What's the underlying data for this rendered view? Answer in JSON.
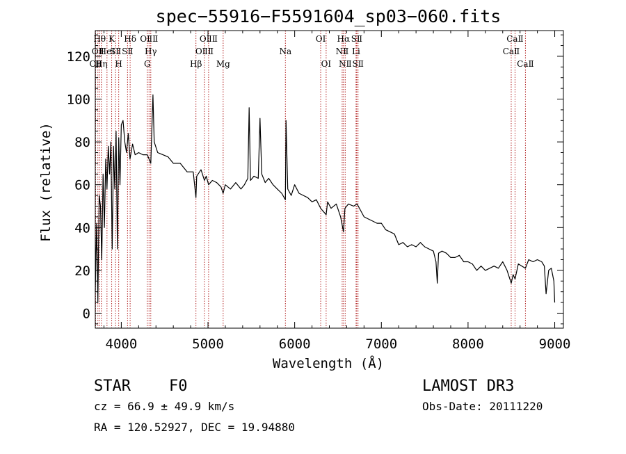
{
  "chart_data": {
    "type": "line",
    "title": "spec−55916−F5591604_sp03−060.fits",
    "xlabel": "Wavelength (Å)",
    "ylabel": "Flux (relative)",
    "xlim": [
      3700,
      9100
    ],
    "ylim": [
      -7,
      132
    ],
    "xticks": [
      4000,
      5000,
      6000,
      7000,
      8000,
      9000
    ],
    "yticks": [
      0,
      20,
      40,
      60,
      80,
      100,
      120
    ],
    "line_color": "#000000",
    "marker_color": "#b22222",
    "series": [
      {
        "name": "flux",
        "x": [
          3700,
          3715,
          3730,
          3745,
          3760,
          3775,
          3790,
          3805,
          3820,
          3835,
          3850,
          3865,
          3880,
          3895,
          3910,
          3925,
          3940,
          3955,
          3970,
          3985,
          4000,
          4020,
          4040,
          4060,
          4080,
          4100,
          4130,
          4160,
          4200,
          4250,
          4300,
          4340,
          4365,
          4380,
          4420,
          4480,
          4540,
          4600,
          4680,
          4760,
          4830,
          4861,
          4870,
          4920,
          4959,
          4980,
          5007,
          5050,
          5100,
          5150,
          5175,
          5200,
          5260,
          5320,
          5380,
          5420,
          5460,
          5475,
          5490,
          5530,
          5580,
          5600,
          5620,
          5660,
          5700,
          5750,
          5800,
          5850,
          5893,
          5900,
          5920,
          5960,
          6000,
          6050,
          6100,
          6150,
          6200,
          6250,
          6300,
          6363,
          6380,
          6420,
          6480,
          6530,
          6563,
          6580,
          6620,
          6680,
          6720,
          6760,
          6800,
          6850,
          6900,
          6950,
          7000,
          7050,
          7100,
          7150,
          7200,
          7250,
          7300,
          7350,
          7400,
          7450,
          7500,
          7550,
          7600,
          7630,
          7645,
          7660,
          7700,
          7750,
          7800,
          7850,
          7900,
          7950,
          8000,
          8050,
          8100,
          8150,
          8200,
          8250,
          8300,
          8350,
          8400,
          8450,
          8498,
          8520,
          8542,
          8580,
          8620,
          8662,
          8700,
          8750,
          8800,
          8850,
          8880,
          8900,
          8930,
          8960,
          8990,
          9000
        ],
        "values": [
          10,
          42,
          5,
          55,
          50,
          25,
          65,
          40,
          72,
          58,
          78,
          65,
          80,
          30,
          78,
          58,
          85,
          30,
          82,
          60,
          88,
          90,
          80,
          75,
          84,
          72,
          79,
          74,
          75,
          74,
          74,
          70,
          102,
          80,
          75,
          74,
          73,
          70,
          70,
          66,
          66,
          54,
          64,
          67,
          62,
          64,
          60,
          62,
          61,
          59,
          56,
          60,
          58,
          61,
          58,
          60,
          63,
          96,
          62,
          64,
          63,
          91,
          65,
          61,
          63,
          60,
          58,
          56,
          53,
          90,
          58,
          55,
          60,
          56,
          55,
          54,
          52,
          53,
          49,
          46,
          52,
          49,
          51,
          45,
          38,
          49,
          51,
          50,
          51,
          48,
          45,
          44,
          43,
          42,
          42,
          39,
          38,
          37,
          32,
          33,
          31,
          32,
          31,
          33,
          31,
          30,
          29,
          24,
          14,
          28,
          29,
          28,
          26,
          26,
          27,
          24,
          24,
          23,
          20,
          22,
          20,
          21,
          22,
          21,
          24,
          20,
          14,
          18,
          16,
          23,
          22,
          21,
          25,
          24,
          25,
          24,
          22,
          9,
          20,
          21,
          15,
          5
        ]
      }
    ],
    "line_markers": [
      {
        "wl": 3704,
        "label": "OⅡ",
        "row": 2
      },
      {
        "wl": 3730,
        "label": "OⅡ",
        "row": 1
      },
      {
        "wl": 3750,
        "label": "Hθ",
        "row": 0
      },
      {
        "wl": 3770,
        "label": "Hη",
        "row": 2
      },
      {
        "wl": 3835,
        "label": "HeⅠ",
        "row": 1
      },
      {
        "wl": 3889,
        "label": "K",
        "row": 0
      },
      {
        "wl": 3934,
        "label": "SⅡ",
        "row": 1
      },
      {
        "wl": 3970,
        "label": "H",
        "row": 2
      },
      {
        "wl": 4072,
        "label": "SⅡ",
        "row": 1
      },
      {
        "wl": 4102,
        "label": "Hδ",
        "row": 0
      },
      {
        "wl": 4300,
        "label": "G",
        "row": 2
      },
      {
        "wl": 4320,
        "label": "OⅡⅡ",
        "row": 0
      },
      {
        "wl": 4340,
        "label": "Hγ",
        "row": 1
      },
      {
        "wl": 4861,
        "label": "Hβ",
        "row": 2
      },
      {
        "wl": 4959,
        "label": "OⅡⅡ",
        "row": 1
      },
      {
        "wl": 5007,
        "label": "OⅡⅡ",
        "row": 0
      },
      {
        "wl": 5175,
        "label": "Mg",
        "row": 2
      },
      {
        "wl": 5893,
        "label": "Na",
        "row": 1
      },
      {
        "wl": 6300,
        "label": "OⅠ",
        "row": 0
      },
      {
        "wl": 6363,
        "label": "OⅠ",
        "row": 2
      },
      {
        "wl": 6548,
        "label": "NⅡ",
        "row": 1
      },
      {
        "wl": 6563,
        "label": "Hα",
        "row": 0
      },
      {
        "wl": 6583,
        "label": "NⅡ",
        "row": 2
      },
      {
        "wl": 6708,
        "label": "Li",
        "row": 1
      },
      {
        "wl": 6716,
        "label": "SⅡ",
        "row": 0
      },
      {
        "wl": 6731,
        "label": "SⅡ",
        "row": 2
      },
      {
        "wl": 8498,
        "label": "CaⅡ",
        "row": 1
      },
      {
        "wl": 8542,
        "label": "CaⅡ",
        "row": 0
      },
      {
        "wl": 8662,
        "label": "CaⅡ",
        "row": 2
      }
    ]
  },
  "info": {
    "object_class": "STAR",
    "subclass": "F0",
    "survey": "LAMOST DR3",
    "cz": "cz = 66.9 ± 49.9 km/s",
    "obs_date": "Obs-Date: 20111220",
    "coords": "RA = 120.52927, DEC =  19.94880"
  }
}
